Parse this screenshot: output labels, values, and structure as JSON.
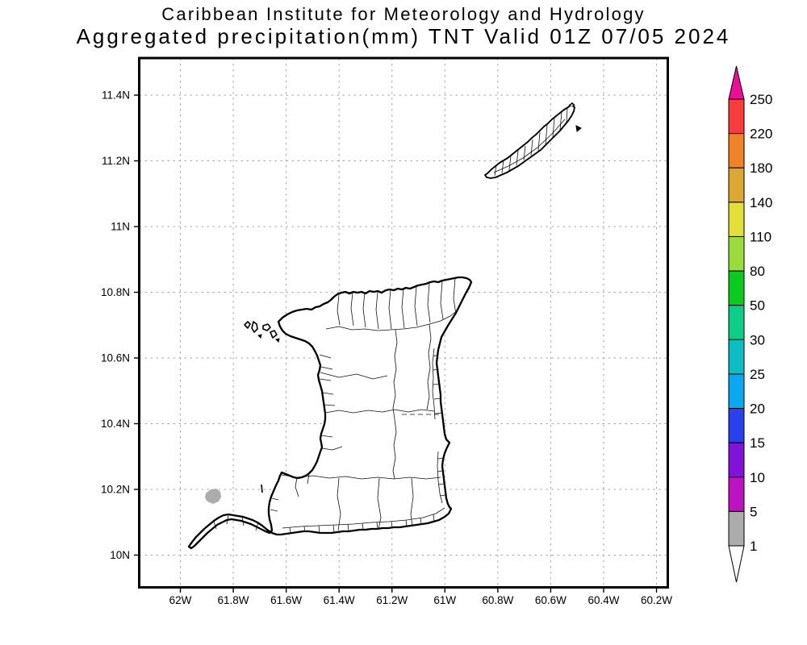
{
  "title": {
    "line1": "Caribbean Institute for Meteorology and Hydrology",
    "line2": "Aggregated precipitation(mm) TNT Valid 01Z 07/05 2024"
  },
  "map": {
    "x_ticks": [
      "62W",
      "61.8W",
      "61.6W",
      "61.4W",
      "61.2W",
      "61W",
      "60.8W",
      "60.6W",
      "60.4W",
      "60.2W"
    ],
    "y_ticks": [
      "11.4N",
      "11.2N",
      "11N",
      "10.8N",
      "10.6N",
      "10.4N",
      "10.2N",
      "10N"
    ],
    "islands": [
      "Trinidad",
      "Tobago"
    ],
    "precip_region": {
      "approx_location": "10.18N 61.88W (Gulf of Paria, west of southwest Trinidad)",
      "value_range_mm": "1-5",
      "color": "#ACACAC"
    }
  },
  "colorbar": {
    "units": "mm",
    "levels": [
      "250",
      "220",
      "180",
      "140",
      "110",
      "80",
      "50",
      "30",
      "25",
      "20",
      "15",
      "10",
      "5",
      "1"
    ],
    "segments": [
      {
        "range_mm": "220-250",
        "color": "#FA3C3C"
      },
      {
        "range_mm": "180-220",
        "color": "#F08228"
      },
      {
        "range_mm": "140-180",
        "color": "#DCA832"
      },
      {
        "range_mm": "110-140",
        "color": "#E4DE38"
      },
      {
        "range_mm": "80-110",
        "color": "#9ADC3C"
      },
      {
        "range_mm": "50-80",
        "color": "#0BCC1E"
      },
      {
        "range_mm": "30-50",
        "color": "#0DCE86"
      },
      {
        "range_mm": "25-30",
        "color": "#0ABEC3"
      },
      {
        "range_mm": "20-25",
        "color": "#0AA8F0"
      },
      {
        "range_mm": "15-20",
        "color": "#2840EE"
      },
      {
        "range_mm": "10-15",
        "color": "#8012DA"
      },
      {
        "range_mm": "5-10",
        "color": "#BC12C0"
      },
      {
        "range_mm": "1-5",
        "color": "#ACACAC"
      }
    ],
    "above_max": {
      "range_mm": ">250",
      "color": "#F00C96"
    },
    "below_min": {
      "range_mm": "<1",
      "color": "#FFFFFF"
    }
  },
  "colors": {
    "background": "#FFFFFF",
    "frame": "#000000",
    "gridline": "#A6A6A6"
  }
}
